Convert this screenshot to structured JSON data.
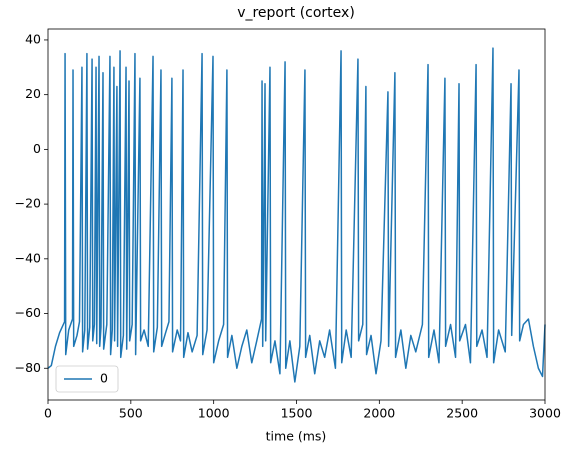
{
  "chart_data": {
    "type": "line",
    "title": "v_report (cortex)",
    "xlabel": "time (ms)",
    "x": [
      0,
      20,
      45,
      70,
      100,
      103,
      107,
      125,
      148,
      151,
      155,
      175,
      190,
      205,
      209,
      222,
      235,
      239,
      252,
      266,
      270,
      280,
      290,
      294,
      308,
      312,
      320,
      332,
      336,
      355,
      374,
      378,
      388,
      398,
      402,
      416,
      420,
      435,
      439,
      455,
      471,
      475,
      489,
      493,
      508,
      525,
      529,
      555,
      559,
      580,
      605,
      634,
      638,
      660,
      682,
      686,
      710,
      730,
      748,
      752,
      780,
      800,
      815,
      819,
      845,
      870,
      900,
      930,
      934,
      960,
      996,
      1000,
      1030,
      1060,
      1080,
      1084,
      1110,
      1140,
      1170,
      1200,
      1230,
      1260,
      1289,
      1292,
      1296,
      1310,
      1314,
      1340,
      1344,
      1370,
      1400,
      1431,
      1435,
      1460,
      1490,
      1520,
      1551,
      1555,
      1580,
      1610,
      1640,
      1670,
      1700,
      1735,
      1769,
      1773,
      1800,
      1830,
      1871,
      1875,
      1900,
      1919,
      1923,
      1950,
      1980,
      2010,
      2052,
      2056,
      2094,
      2098,
      2130,
      2160,
      2190,
      2220,
      2260,
      2294,
      2298,
      2330,
      2360,
      2396,
      2400,
      2430,
      2460,
      2481,
      2485,
      2520,
      2550,
      2584,
      2588,
      2620,
      2650,
      2686,
      2690,
      2720,
      2760,
      2795,
      2799,
      2843,
      2847,
      2870,
      2900,
      2930,
      2960,
      2985,
      3000
    ],
    "series": [
      {
        "name": "0",
        "color": "#1f77b4",
        "values": [
          -80,
          -79,
          -72,
          -67,
          -63,
          35,
          -75,
          -66,
          -62,
          29,
          -72,
          -68,
          -63,
          30,
          -74,
          -66,
          35,
          -73,
          -65,
          33,
          -70,
          -64,
          30,
          -71,
          34,
          -72,
          -65,
          28,
          -73,
          -64,
          34,
          -75,
          -66,
          30,
          -70,
          23,
          -72,
          36,
          -76,
          -68,
          30,
          -73,
          25,
          -70,
          -64,
          35,
          -75,
          26,
          -70,
          -66,
          -72,
          34,
          -74,
          -65,
          29,
          -72,
          -67,
          -63,
          26,
          -74,
          -66,
          -70,
          29,
          -76,
          -67,
          -74,
          -68,
          35,
          -75,
          -66,
          34,
          -78,
          -70,
          -64,
          29,
          -76,
          -68,
          -80,
          -72,
          -66,
          -78,
          -70,
          -62,
          25,
          -72,
          24,
          -70,
          30,
          -78,
          -70,
          -82,
          32,
          -80,
          -70,
          -85,
          -72,
          29,
          -76,
          -68,
          -82,
          -70,
          -76,
          -66,
          -80,
          36,
          -78,
          -66,
          -76,
          33,
          -70,
          -64,
          23,
          -75,
          -68,
          -82,
          -70,
          21,
          -72,
          28,
          -76,
          -66,
          -80,
          -68,
          -74,
          -64,
          31,
          -76,
          -66,
          -78,
          26,
          -72,
          -64,
          -76,
          24,
          -70,
          -64,
          -78,
          31,
          -72,
          -66,
          -76,
          37,
          -78,
          -66,
          -74,
          24,
          -68,
          29,
          -70,
          -64,
          -62,
          -72,
          -80,
          -83,
          -64
        ]
      }
    ],
    "xlim": [
      0,
      3000
    ],
    "xticks": [
      0,
      500,
      1000,
      1500,
      2000,
      2500,
      3000
    ],
    "ylim": [
      -91.6,
      44
    ],
    "yticks": [
      {
        "value": -80,
        "label": "−80"
      },
      {
        "value": -60,
        "label": "−60"
      },
      {
        "value": -40,
        "label": "−40"
      },
      {
        "value": -20,
        "label": "−20"
      },
      0,
      20,
      40
    ],
    "legend": "lower left"
  }
}
